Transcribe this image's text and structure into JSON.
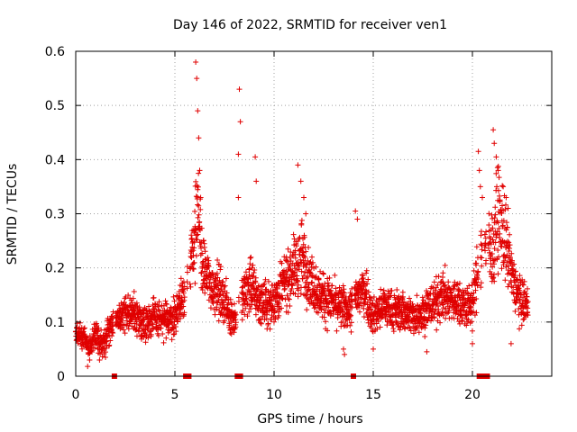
{
  "chart_data": {
    "type": "scatter",
    "title": "Day 146 of 2022, SRMTID for receiver ven1",
    "xlabel": "GPS time / hours",
    "ylabel": "SRMTID / TECUs",
    "xlim": [
      0,
      24
    ],
    "ylim": [
      0,
      0.6
    ],
    "xticks": [
      0,
      5,
      10,
      15,
      20
    ],
    "xtick_labels": [
      "0",
      "5",
      "10",
      "15",
      "20"
    ],
    "yticks": [
      0,
      0.1,
      0.2,
      0.3,
      0.4,
      0.5,
      0.6
    ],
    "ytick_labels": [
      "0",
      "0.1",
      "0.2",
      "0.3",
      "0.4",
      "0.5",
      "0.6"
    ],
    "grid": true,
    "marker": "plus",
    "color": "#e00000",
    "gap_markers_hours": [
      1.95,
      5.55,
      5.7,
      8.15,
      8.3,
      14.0,
      20.35,
      20.55,
      20.75
    ],
    "profile": [
      [
        0.0,
        0.085
      ],
      [
        0.4,
        0.075
      ],
      [
        0.7,
        0.05
      ],
      [
        1.0,
        0.08
      ],
      [
        1.3,
        0.06
      ],
      [
        1.7,
        0.085
      ],
      [
        2.0,
        0.1
      ],
      [
        2.5,
        0.12
      ],
      [
        3.0,
        0.11
      ],
      [
        3.5,
        0.1
      ],
      [
        4.0,
        0.11
      ],
      [
        4.5,
        0.1
      ],
      [
        5.0,
        0.11
      ],
      [
        5.4,
        0.15
      ],
      [
        5.8,
        0.2
      ],
      [
        6.0,
        0.26
      ],
      [
        6.2,
        0.3
      ],
      [
        6.4,
        0.2
      ],
      [
        6.8,
        0.17
      ],
      [
        7.2,
        0.16
      ],
      [
        7.6,
        0.13
      ],
      [
        8.0,
        0.1
      ],
      [
        8.4,
        0.14
      ],
      [
        8.8,
        0.17
      ],
      [
        9.2,
        0.14
      ],
      [
        9.6,
        0.13
      ],
      [
        10.0,
        0.14
      ],
      [
        10.5,
        0.17
      ],
      [
        11.0,
        0.2
      ],
      [
        11.4,
        0.22
      ],
      [
        11.8,
        0.18
      ],
      [
        12.3,
        0.15
      ],
      [
        12.8,
        0.14
      ],
      [
        13.3,
        0.13
      ],
      [
        13.8,
        0.12
      ],
      [
        14.2,
        0.15
      ],
      [
        14.6,
        0.16
      ],
      [
        15.0,
        0.11
      ],
      [
        15.5,
        0.13
      ],
      [
        16.0,
        0.12
      ],
      [
        16.5,
        0.12
      ],
      [
        17.0,
        0.11
      ],
      [
        17.5,
        0.12
      ],
      [
        18.0,
        0.13
      ],
      [
        18.5,
        0.15
      ],
      [
        19.0,
        0.14
      ],
      [
        19.5,
        0.13
      ],
      [
        20.0,
        0.13
      ],
      [
        20.3,
        0.2
      ],
      [
        20.6,
        0.25
      ],
      [
        21.0,
        0.22
      ],
      [
        21.3,
        0.3
      ],
      [
        21.6,
        0.26
      ],
      [
        22.0,
        0.18
      ],
      [
        22.4,
        0.14
      ],
      [
        22.8,
        0.13
      ]
    ],
    "peaks": [
      [
        6.05,
        0.58
      ],
      [
        6.1,
        0.55
      ],
      [
        6.15,
        0.49
      ],
      [
        6.2,
        0.44
      ],
      [
        6.25,
        0.38
      ],
      [
        6.3,
        0.33
      ],
      [
        8.25,
        0.53
      ],
      [
        8.3,
        0.47
      ],
      [
        8.2,
        0.41
      ],
      [
        8.2,
        0.33
      ],
      [
        9.05,
        0.405
      ],
      [
        9.1,
        0.36
      ],
      [
        11.2,
        0.39
      ],
      [
        11.35,
        0.36
      ],
      [
        11.5,
        0.33
      ],
      [
        11.6,
        0.3
      ],
      [
        14.1,
        0.305
      ],
      [
        14.2,
        0.29
      ],
      [
        20.3,
        0.415
      ],
      [
        20.35,
        0.38
      ],
      [
        20.4,
        0.35
      ],
      [
        20.5,
        0.33
      ],
      [
        21.05,
        0.455
      ],
      [
        21.1,
        0.43
      ],
      [
        21.2,
        0.405
      ],
      [
        21.3,
        0.38
      ],
      [
        21.55,
        0.35
      ],
      [
        21.7,
        0.33
      ],
      [
        21.8,
        0.31
      ]
    ],
    "dips": [
      [
        0.6,
        0.018
      ],
      [
        0.7,
        0.03
      ],
      [
        1.2,
        0.03
      ],
      [
        1.5,
        0.035
      ],
      [
        13.5,
        0.05
      ],
      [
        13.55,
        0.04
      ],
      [
        15.0,
        0.05
      ],
      [
        17.7,
        0.045
      ],
      [
        20.0,
        0.06
      ],
      [
        21.95,
        0.06
      ]
    ]
  }
}
